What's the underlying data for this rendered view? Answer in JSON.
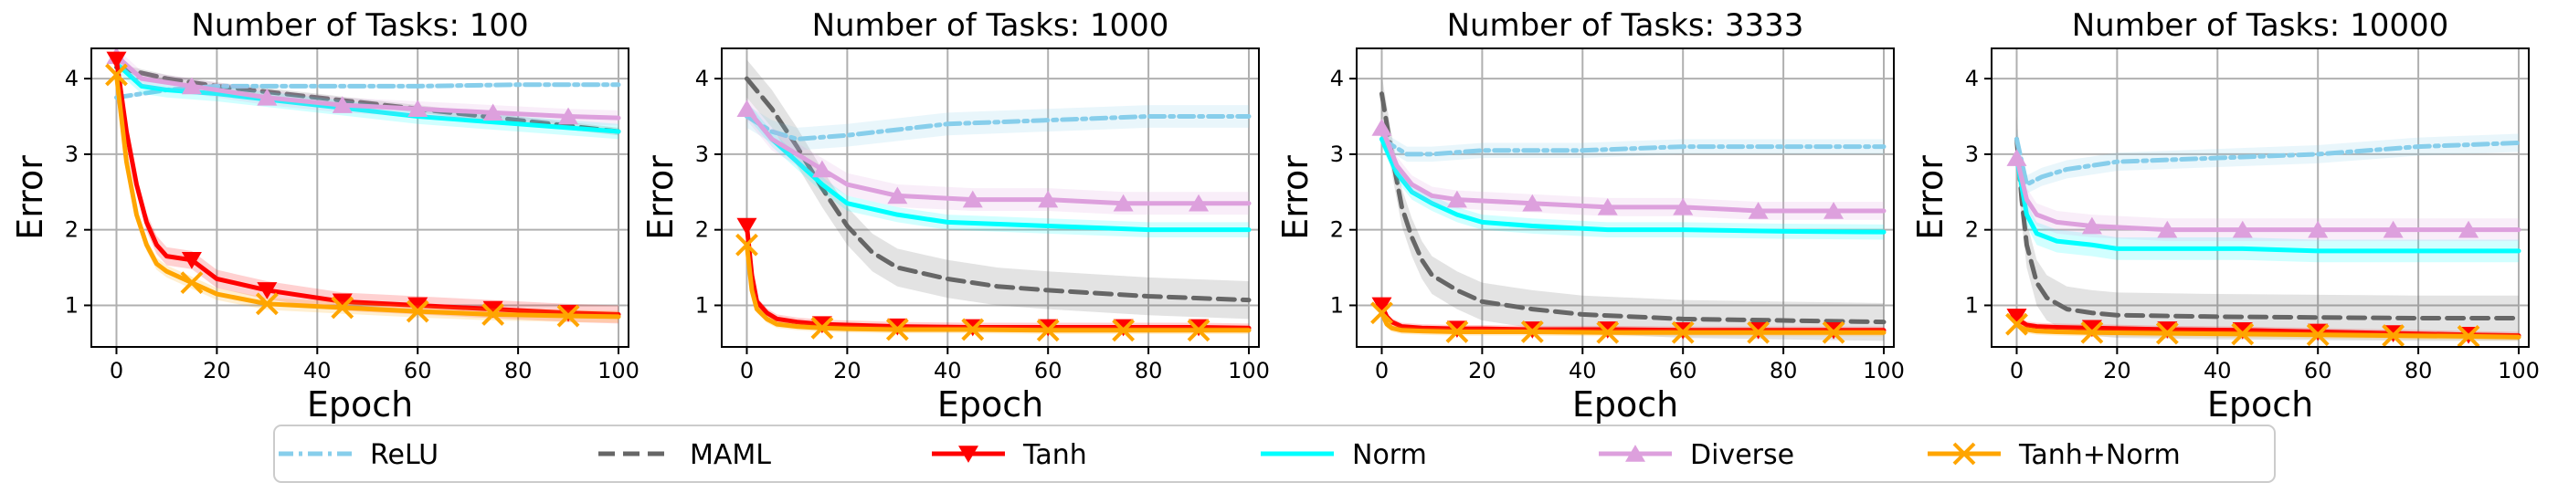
{
  "chart_data": [
    {
      "type": "line",
      "title": "Number of Tasks: 100",
      "xlabel": "Epoch",
      "ylabel": "Error",
      "xlim": [
        -5,
        102
      ],
      "ylim": [
        0.45,
        4.4
      ],
      "xticks": [
        0,
        20,
        40,
        60,
        80,
        100
      ],
      "yticks": [
        1,
        2,
        3,
        4
      ],
      "grid": true,
      "series": [
        {
          "name": "ReLU",
          "x": [
            0,
            5,
            10,
            20,
            40,
            60,
            80,
            100
          ],
          "y": [
            3.75,
            3.8,
            3.85,
            3.9,
            3.9,
            3.9,
            3.92,
            3.92
          ],
          "band": 0.03
        },
        {
          "name": "MAML",
          "x": [
            0,
            10,
            20,
            40,
            60,
            80,
            100
          ],
          "y": [
            4.15,
            4.0,
            3.9,
            3.75,
            3.6,
            3.45,
            3.3
          ],
          "band": 0.05
        },
        {
          "name": "Tanh",
          "x": [
            0,
            2,
            4,
            6,
            8,
            10,
            15,
            20,
            30,
            45,
            60,
            75,
            90,
            100
          ],
          "y": [
            4.25,
            3.3,
            2.6,
            2.1,
            1.8,
            1.65,
            1.6,
            1.35,
            1.2,
            1.05,
            1.0,
            0.95,
            0.9,
            0.88
          ],
          "band": 0.12
        },
        {
          "name": "Norm",
          "x": [
            0,
            5,
            10,
            20,
            40,
            60,
            80,
            100
          ],
          "y": [
            4.2,
            3.9,
            3.85,
            3.8,
            3.65,
            3.5,
            3.4,
            3.3
          ],
          "band": 0.1
        },
        {
          "name": "Diverse",
          "x": [
            0,
            5,
            15,
            30,
            45,
            60,
            75,
            90,
            100
          ],
          "y": [
            4.3,
            4.0,
            3.9,
            3.75,
            3.65,
            3.6,
            3.55,
            3.5,
            3.48
          ],
          "band": 0.1
        },
        {
          "name": "Tanh+Norm",
          "x": [
            0,
            2,
            4,
            6,
            8,
            10,
            15,
            20,
            30,
            45,
            60,
            75,
            90,
            100
          ],
          "y": [
            4.05,
            2.9,
            2.2,
            1.8,
            1.55,
            1.45,
            1.3,
            1.15,
            1.02,
            0.97,
            0.92,
            0.88,
            0.86,
            0.85
          ],
          "band": 0.08
        }
      ]
    },
    {
      "type": "line",
      "title": "Number of Tasks: 1000",
      "xlabel": "Epoch",
      "ylabel": "Error",
      "xlim": [
        -5,
        102
      ],
      "ylim": [
        0.45,
        4.4
      ],
      "xticks": [
        0,
        20,
        40,
        60,
        80,
        100
      ],
      "yticks": [
        1,
        2,
        3,
        4
      ],
      "grid": true,
      "series": [
        {
          "name": "ReLU",
          "x": [
            0,
            5,
            10,
            20,
            40,
            60,
            80,
            100
          ],
          "y": [
            3.5,
            3.3,
            3.2,
            3.25,
            3.4,
            3.45,
            3.5,
            3.5
          ],
          "band": 0.15
        },
        {
          "name": "MAML",
          "x": [
            0,
            5,
            10,
            15,
            20,
            25,
            30,
            40,
            50,
            60,
            80,
            100
          ],
          "y": [
            4.0,
            3.6,
            3.1,
            2.55,
            2.05,
            1.7,
            1.5,
            1.35,
            1.25,
            1.2,
            1.12,
            1.07
          ],
          "band": 0.25
        },
        {
          "name": "Tanh",
          "x": [
            0,
            1,
            2,
            4,
            6,
            10,
            15,
            20,
            30,
            45,
            60,
            75,
            90,
            100
          ],
          "y": [
            2.05,
            1.4,
            1.05,
            0.9,
            0.82,
            0.78,
            0.75,
            0.74,
            0.72,
            0.71,
            0.71,
            0.71,
            0.71,
            0.7
          ],
          "band": 0.06
        },
        {
          "name": "Norm",
          "x": [
            0,
            5,
            10,
            15,
            20,
            30,
            40,
            60,
            80,
            100
          ],
          "y": [
            3.6,
            3.2,
            2.9,
            2.6,
            2.35,
            2.2,
            2.1,
            2.05,
            2.0,
            2.0
          ],
          "band": 0.1
        },
        {
          "name": "Diverse",
          "x": [
            0,
            5,
            10,
            15,
            20,
            30,
            45,
            60,
            75,
            90,
            100
          ],
          "y": [
            3.6,
            3.2,
            3.0,
            2.8,
            2.6,
            2.45,
            2.4,
            2.4,
            2.35,
            2.35,
            2.35
          ],
          "band": 0.15
        },
        {
          "name": "Tanh+Norm",
          "x": [
            0,
            1,
            2,
            4,
            6,
            10,
            15,
            20,
            30,
            45,
            60,
            75,
            90,
            100
          ],
          "y": [
            1.8,
            1.2,
            0.95,
            0.82,
            0.75,
            0.72,
            0.7,
            0.69,
            0.68,
            0.68,
            0.67,
            0.67,
            0.67,
            0.67
          ],
          "band": 0.05
        }
      ]
    },
    {
      "type": "line",
      "title": "Number of Tasks: 3333",
      "xlabel": "Epoch",
      "ylabel": "Error",
      "xlim": [
        -5,
        102
      ],
      "ylim": [
        0.45,
        4.4
      ],
      "xticks": [
        0,
        20,
        40,
        60,
        80,
        100
      ],
      "yticks": [
        1,
        2,
        3,
        4
      ],
      "grid": true,
      "series": [
        {
          "name": "ReLU",
          "x": [
            0,
            5,
            10,
            20,
            40,
            60,
            80,
            100
          ],
          "y": [
            3.2,
            3.0,
            3.0,
            3.05,
            3.05,
            3.1,
            3.1,
            3.1
          ],
          "band": 0.1
        },
        {
          "name": "MAML",
          "x": [
            0,
            2,
            4,
            6,
            8,
            10,
            15,
            20,
            30,
            40,
            60,
            80,
            100
          ],
          "y": [
            3.8,
            3.0,
            2.3,
            1.9,
            1.6,
            1.4,
            1.2,
            1.05,
            0.95,
            0.88,
            0.82,
            0.8,
            0.78
          ],
          "band": 0.25
        },
        {
          "name": "Tanh",
          "x": [
            0,
            1,
            2,
            4,
            8,
            15,
            20,
            30,
            45,
            60,
            75,
            90,
            100
          ],
          "y": [
            1.0,
            0.85,
            0.78,
            0.72,
            0.7,
            0.69,
            0.69,
            0.68,
            0.68,
            0.67,
            0.67,
            0.67,
            0.67
          ],
          "band": 0.05
        },
        {
          "name": "Norm",
          "x": [
            0,
            3,
            6,
            10,
            15,
            20,
            30,
            45,
            60,
            80,
            100
          ],
          "y": [
            3.2,
            2.75,
            2.5,
            2.35,
            2.2,
            2.1,
            2.05,
            2.0,
            2.0,
            1.98,
            1.97
          ],
          "band": 0.1
        },
        {
          "name": "Diverse",
          "x": [
            0,
            3,
            6,
            10,
            15,
            30,
            45,
            60,
            75,
            90,
            100
          ],
          "y": [
            3.35,
            2.85,
            2.6,
            2.45,
            2.4,
            2.35,
            2.3,
            2.3,
            2.25,
            2.25,
            2.25
          ],
          "band": 0.12
        },
        {
          "name": "Tanh+Norm",
          "x": [
            0,
            1,
            2,
            4,
            8,
            15,
            20,
            30,
            45,
            60,
            75,
            90,
            100
          ],
          "y": [
            0.9,
            0.75,
            0.7,
            0.67,
            0.66,
            0.65,
            0.65,
            0.65,
            0.64,
            0.64,
            0.64,
            0.64,
            0.64
          ],
          "band": 0.05
        }
      ]
    },
    {
      "type": "line",
      "title": "Number of Tasks: 10000",
      "xlabel": "Epoch",
      "ylabel": "Error",
      "xlim": [
        -5,
        102
      ],
      "ylim": [
        0.45,
        4.4
      ],
      "xticks": [
        0,
        20,
        40,
        60,
        80,
        100
      ],
      "yticks": [
        1,
        2,
        3,
        4
      ],
      "grid": true,
      "series": [
        {
          "name": "ReLU",
          "x": [
            0,
            2,
            5,
            10,
            20,
            40,
            60,
            80,
            100
          ],
          "y": [
            3.2,
            2.6,
            2.7,
            2.8,
            2.9,
            2.95,
            3.0,
            3.1,
            3.15
          ],
          "band": 0.12
        },
        {
          "name": "MAML",
          "x": [
            0,
            1,
            2,
            4,
            6,
            10,
            15,
            20,
            40,
            60,
            80,
            100
          ],
          "y": [
            3.2,
            2.4,
            1.8,
            1.3,
            1.1,
            0.95,
            0.9,
            0.87,
            0.85,
            0.84,
            0.83,
            0.83
          ],
          "band": 0.3
        },
        {
          "name": "Tanh",
          "x": [
            0,
            1,
            2,
            4,
            8,
            15,
            30,
            45,
            60,
            75,
            90,
            100
          ],
          "y": [
            0.85,
            0.78,
            0.74,
            0.72,
            0.71,
            0.7,
            0.68,
            0.67,
            0.65,
            0.63,
            0.61,
            0.6
          ],
          "band": 0.05
        },
        {
          "name": "Norm",
          "x": [
            0,
            2,
            4,
            8,
            15,
            20,
            30,
            45,
            60,
            80,
            100
          ],
          "y": [
            2.95,
            2.2,
            1.95,
            1.85,
            1.8,
            1.75,
            1.75,
            1.75,
            1.72,
            1.72,
            1.72
          ],
          "band": 0.15
        },
        {
          "name": "Diverse",
          "x": [
            0,
            2,
            4,
            8,
            15,
            30,
            45,
            60,
            75,
            90,
            100
          ],
          "y": [
            2.95,
            2.4,
            2.2,
            2.1,
            2.05,
            2.0,
            2.0,
            2.0,
            2.0,
            2.0,
            2.0
          ],
          "band": 0.15
        },
        {
          "name": "Tanh+Norm",
          "x": [
            0,
            1,
            2,
            4,
            8,
            15,
            30,
            45,
            60,
            75,
            90,
            100
          ],
          "y": [
            0.75,
            0.7,
            0.68,
            0.66,
            0.65,
            0.64,
            0.63,
            0.62,
            0.61,
            0.6,
            0.59,
            0.58
          ],
          "band": 0.05
        }
      ]
    }
  ],
  "legend": {
    "placement": "bottom",
    "entries": [
      "ReLU",
      "MAML",
      "Tanh",
      "Norm",
      "Diverse",
      "Tanh+Norm"
    ]
  },
  "styles": {
    "ReLU": {
      "color": "#87CEEB",
      "dash": "dashdot",
      "marker": "none"
    },
    "MAML": {
      "color": "#666666",
      "dash": "dashed",
      "marker": "none"
    },
    "Tanh": {
      "color": "#FF0000",
      "dash": "solid",
      "marker": "triangle-down"
    },
    "Norm": {
      "color": "#00FFFF",
      "dash": "solid",
      "marker": "none"
    },
    "Diverse": {
      "color": "#DDA0DD",
      "dash": "solid",
      "marker": "triangle-up"
    },
    "Tanh+Norm": {
      "color": "#FFA500",
      "dash": "solid",
      "marker": "x"
    }
  },
  "markers_at": [
    0,
    15,
    30,
    45,
    60,
    75,
    90
  ]
}
